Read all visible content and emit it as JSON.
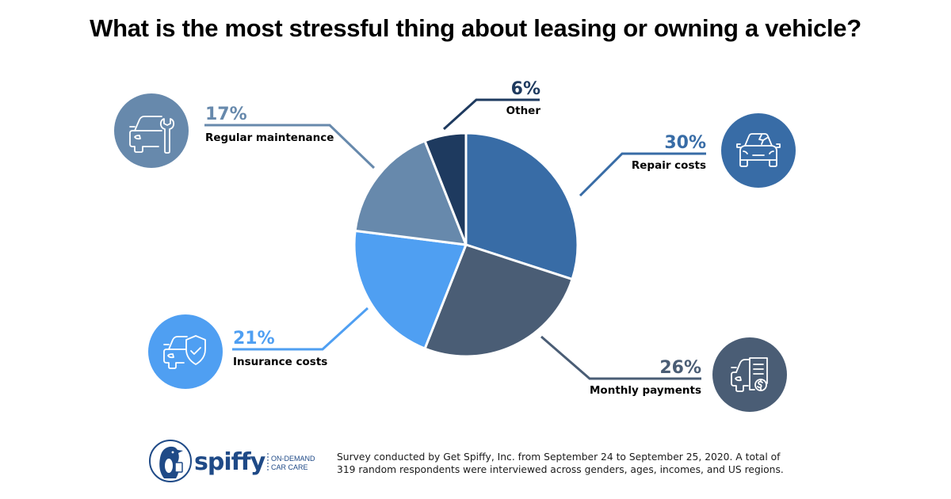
{
  "chart_data": {
    "type": "pie",
    "title": "What is the most stressful thing about leasing or owning a vehicle?",
    "start_angle_deg": 0,
    "direction": "clockwise",
    "slices": [
      {
        "key": "repair",
        "label": "Repair costs",
        "value": 30,
        "display": "30%",
        "color": "#386ca6",
        "icon": "car-cracked-windshield-icon"
      },
      {
        "key": "monthly",
        "label": "Monthly payments",
        "value": 26,
        "display": "26%",
        "color": "#4a5d75",
        "icon": "car-invoice-dollar-icon"
      },
      {
        "key": "insurance",
        "label": "Insurance costs",
        "value": 21,
        "display": "21%",
        "color": "#4f9ff2",
        "icon": "car-shield-check-icon"
      },
      {
        "key": "maintenance",
        "label": "Regular maintenance",
        "value": 17,
        "display": "17%",
        "color": "#6789ac",
        "icon": "car-wrench-icon"
      },
      {
        "key": "other",
        "label": "Other",
        "value": 6,
        "display": "6%",
        "color": "#1e3a5f",
        "icon": null
      }
    ],
    "units": "percent of respondents"
  },
  "footer": {
    "brand_name": "spiffy",
    "brand_tagline_line1": "ON-DEMAND",
    "brand_tagline_line2": "CAR CARE",
    "brand_color": "#1f4a87",
    "note_line1": "Survey conducted by Get Spiffy, Inc. from September 24 to September 25, 2020. A total of",
    "note_line2": "319 random respondents were interviewed across genders, ages, incomes, and US regions."
  }
}
